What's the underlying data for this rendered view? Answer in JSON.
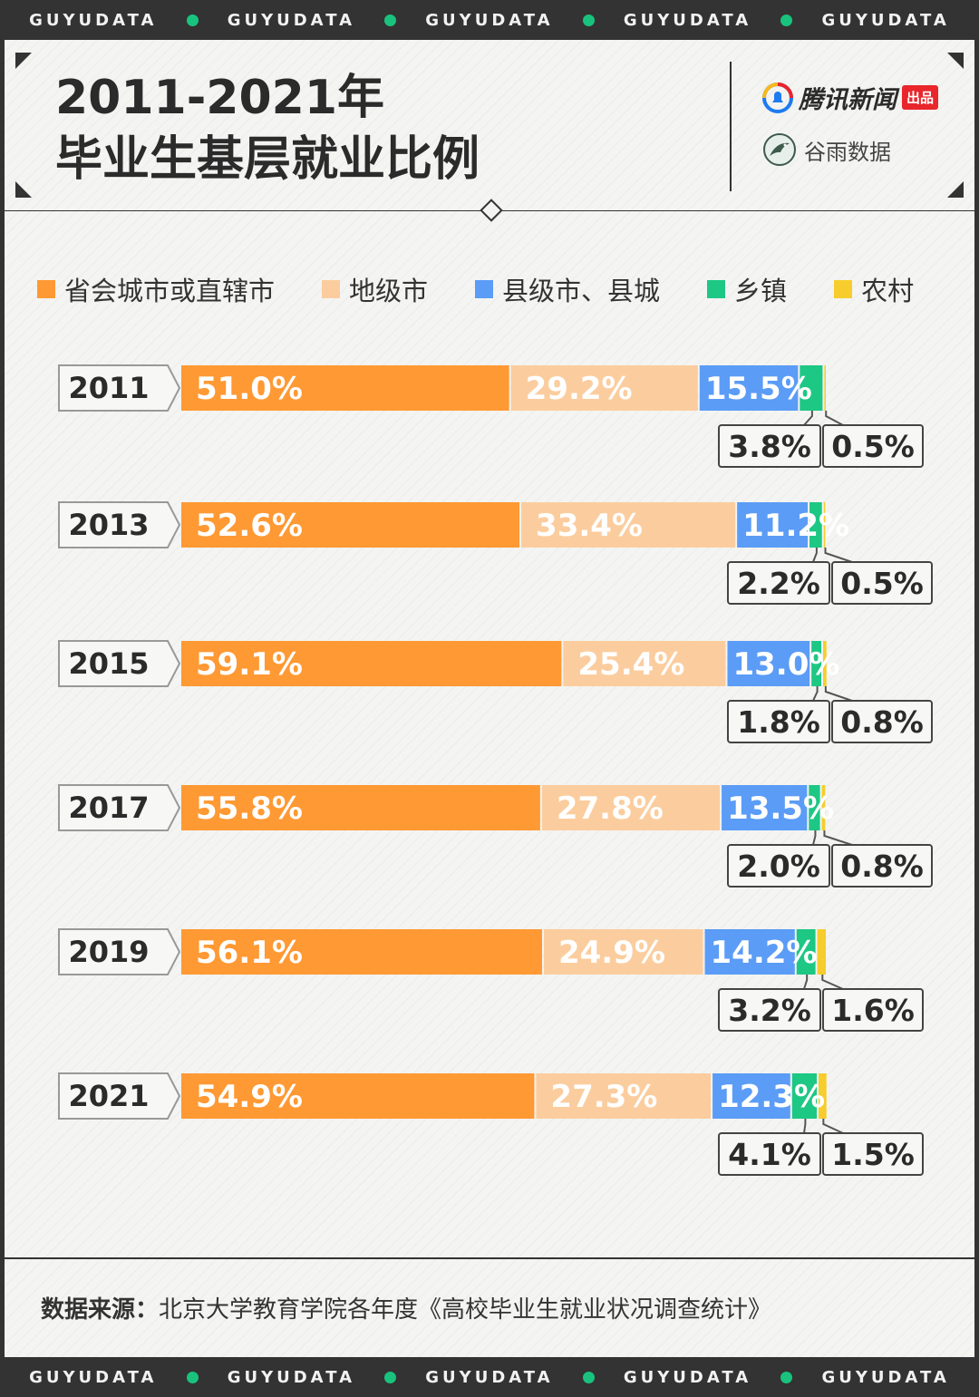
{
  "brand_band": [
    "GUYUDATA",
    "GUYUDATA",
    "GUYUDATA",
    "GUYUDATA",
    "GUYUDATA"
  ],
  "title_line1": "2011-2021年",
  "title_line2": "毕业生基层就业比例",
  "logo_tencent": "腾讯新闻",
  "logo_badge": "出品",
  "logo_guyu": "谷雨数据",
  "source_label": "数据来源：",
  "source_text": "北京大学教育学院各年度《高校毕业生就业状况调查统计》",
  "colors": {
    "provincial": "#ff9933",
    "prefecture": "#fbcd9e",
    "county": "#5b9cf6",
    "township": "#1dc784",
    "rural": "#f6cd2c"
  },
  "chart_data": {
    "type": "bar",
    "orientation": "horizontal",
    "stacked": true,
    "title": "2011-2021年毕业生基层就业比例",
    "categories": [
      "2011",
      "2013",
      "2015",
      "2017",
      "2019",
      "2021"
    ],
    "legend_position": "top",
    "unit": "%",
    "series": [
      {
        "name": "省会城市或直辖市",
        "values": [
          51.0,
          52.6,
          59.1,
          55.8,
          56.1,
          54.9
        ],
        "labels": [
          "51.0%",
          "52.6%",
          "59.1%",
          "55.8%",
          "56.1%",
          "54.9%"
        ]
      },
      {
        "name": "地级市",
        "values": [
          29.2,
          33.4,
          25.4,
          27.8,
          24.9,
          27.3
        ],
        "labels": [
          "29.2%",
          "33.4%",
          "25.4%",
          "27.8%",
          "24.9%",
          "27.3%"
        ]
      },
      {
        "name": "县级市、县城",
        "values": [
          15.5,
          11.2,
          13.0,
          13.5,
          14.2,
          12.3
        ],
        "labels": [
          "15.5%",
          "11.2%",
          "13.0%",
          "13.5%",
          "14.2%",
          "12.3%"
        ]
      },
      {
        "name": "乡镇",
        "values": [
          3.8,
          2.2,
          1.8,
          2.0,
          3.2,
          4.1
        ],
        "labels": [
          "3.8%",
          "2.2%",
          "1.8%",
          "2.0%",
          "3.2%",
          "4.1%"
        ]
      },
      {
        "name": "农村",
        "values": [
          0.5,
          0.5,
          0.8,
          0.8,
          1.6,
          1.5
        ],
        "labels": [
          "0.5%",
          "0.5%",
          "0.8%",
          "0.8%",
          "1.6%",
          "1.5%"
        ]
      }
    ]
  }
}
